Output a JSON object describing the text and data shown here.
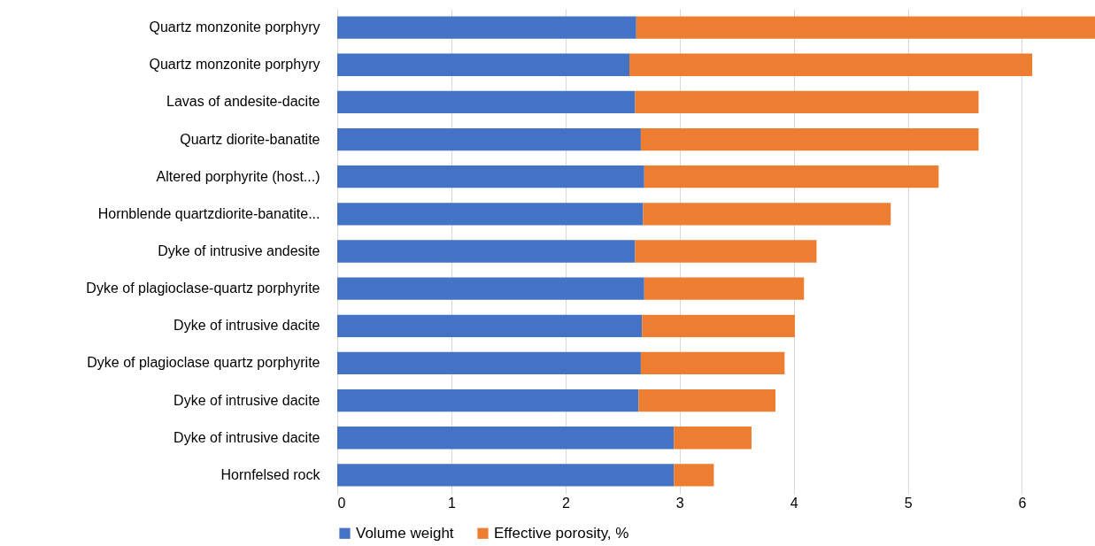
{
  "chart_data": {
    "type": "bar",
    "orientation": "horizontal",
    "stacked": true,
    "categories": [
      "Quartz monzonite porphyry",
      "Quartz monzonite porphyry",
      "Lavas of andesite-dacite",
      "Quartz diorite-banatite",
      "Altered porphyrite (host...)",
      "Hornblende quartzdiorite-banatite...",
      "Dyke of intrusive andesite",
      "Dyke of plagioclase-quartz porphyrite",
      "Dyke of intrusive dacite",
      "Dyke of plagioclase quartz porphyrite",
      "Dyke of intrusive dacite",
      "Dyke of intrusive dacite",
      "Hornfelsed rock"
    ],
    "series": [
      {
        "name": "Volume weight",
        "color": "#4472c4",
        "values": [
          2.62,
          2.56,
          2.61,
          2.66,
          2.69,
          2.68,
          2.61,
          2.69,
          2.67,
          2.66,
          2.64,
          2.95,
          2.95
        ]
      },
      {
        "name": "Effective porosity, %",
        "color": "#ed7d31",
        "values": [
          4.02,
          3.53,
          3.01,
          2.96,
          2.58,
          2.17,
          1.59,
          1.4,
          1.34,
          1.26,
          1.2,
          0.68,
          0.35
        ]
      }
    ],
    "xlim": [
      0,
      6.64
    ],
    "xticks": [
      0,
      1,
      2,
      3,
      4,
      5,
      6
    ],
    "grid": "x",
    "legend": "bottom"
  }
}
